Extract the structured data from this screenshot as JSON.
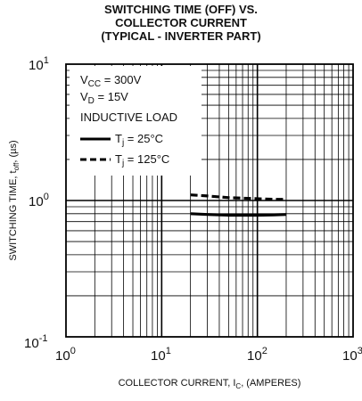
{
  "title": {
    "line1": "SWITCHING TIME (OFF) VS.",
    "line2": "COLLECTOR CURRENT",
    "line3": "(TYPICAL - INVERTER PART)"
  },
  "axes": {
    "x_tick_base": "10",
    "x_tick_exps": [
      "0",
      "1",
      "2",
      "3"
    ],
    "y_tick_base": "10",
    "y_tick_exps": [
      "1",
      "0",
      "-1"
    ],
    "xlabel": {
      "main": "COLLECTOR CURRENT, I",
      "sub": "C",
      "tail": ", (AMPERES)"
    },
    "ylabel": {
      "main": "SWITCHING TIME, t",
      "sub": "off",
      "tail": ", (µs)"
    }
  },
  "conditions": {
    "vcc": {
      "main": "V",
      "sub": "CC",
      "tail": " = 300V"
    },
    "vd": {
      "main": "V",
      "sub": "D",
      "tail": " = 15V"
    },
    "load": "INDUCTIVE LOAD"
  },
  "legend": [
    {
      "main": "T",
      "sub": "j",
      "tail": " = 25°C",
      "style": "solid"
    },
    {
      "main": "T",
      "sub": "j",
      "tail": " = 125°C",
      "style": "dashed"
    }
  ],
  "chart_data": {
    "type": "line",
    "title": "SWITCHING TIME (OFF) VS. COLLECTOR CURRENT (TYPICAL - INVERTER PART)",
    "xlabel": "COLLECTOR CURRENT, IC, (AMPERES)",
    "ylabel": "SWITCHING TIME, toff, (µs)",
    "x_scale": "log",
    "y_scale": "log",
    "xlim": [
      1,
      1000
    ],
    "ylim": [
      0.1,
      10
    ],
    "grid": true,
    "legend_position": "top-left",
    "series": [
      {
        "name": "Tj = 25°C",
        "style": "solid",
        "x": [
          20,
          30,
          50,
          100,
          150,
          200
        ],
        "y": [
          0.8,
          0.79,
          0.78,
          0.78,
          0.785,
          0.79
        ]
      },
      {
        "name": "Tj = 125°C",
        "style": "dashed",
        "x": [
          20,
          30,
          50,
          100,
          150,
          200
        ],
        "y": [
          1.1,
          1.08,
          1.05,
          1.03,
          1.02,
          1.02
        ]
      }
    ]
  }
}
